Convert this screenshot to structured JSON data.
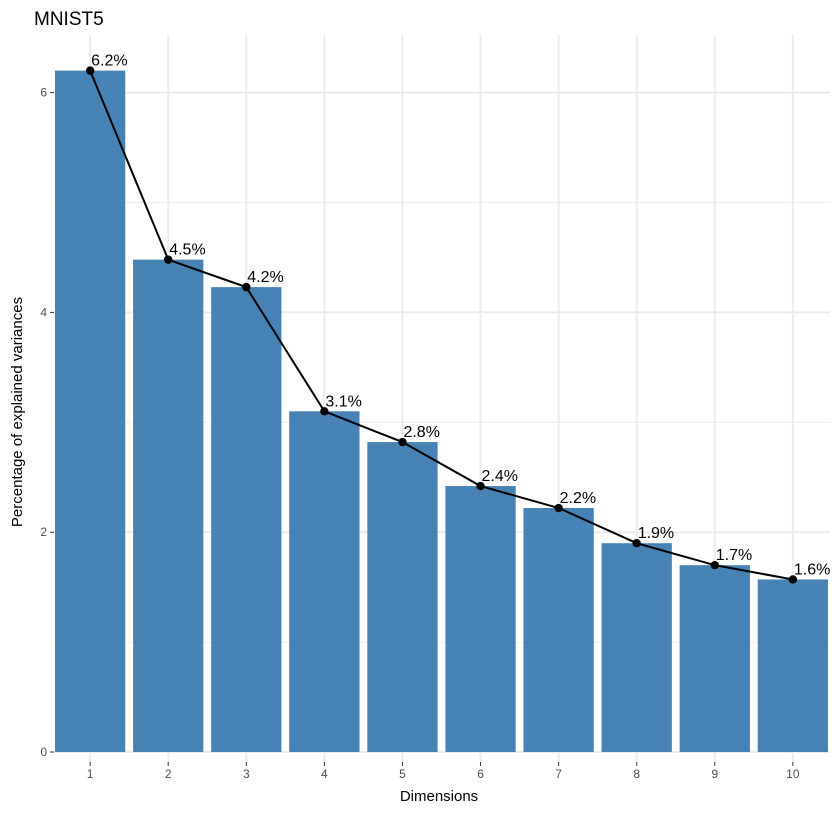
{
  "chart_data": {
    "type": "bar",
    "title": "MNIST5",
    "xlabel": "Dimensions",
    "ylabel": "Percentage of explained variances",
    "categories": [
      "1",
      "2",
      "3",
      "4",
      "5",
      "6",
      "7",
      "8",
      "9",
      "10"
    ],
    "values": [
      6.2,
      4.48,
      4.23,
      3.1,
      2.82,
      2.42,
      2.22,
      1.9,
      1.7,
      1.57
    ],
    "value_labels": [
      "6.2%",
      "4.5%",
      "4.2%",
      "3.1%",
      "2.8%",
      "2.4%",
      "2.2%",
      "1.9%",
      "1.7%",
      "1.6%"
    ],
    "y_ticks": [
      "0",
      "2",
      "4",
      "6"
    ],
    "y_tick_values": [
      0,
      2,
      4,
      6
    ],
    "ylim": [
      0,
      6.2
    ],
    "grid": true,
    "line_overlay": true,
    "colors": {
      "bar": "#4682b4",
      "line": "#000000",
      "grid": "#ebebeb",
      "tick_label": "#4d4d4d"
    }
  }
}
